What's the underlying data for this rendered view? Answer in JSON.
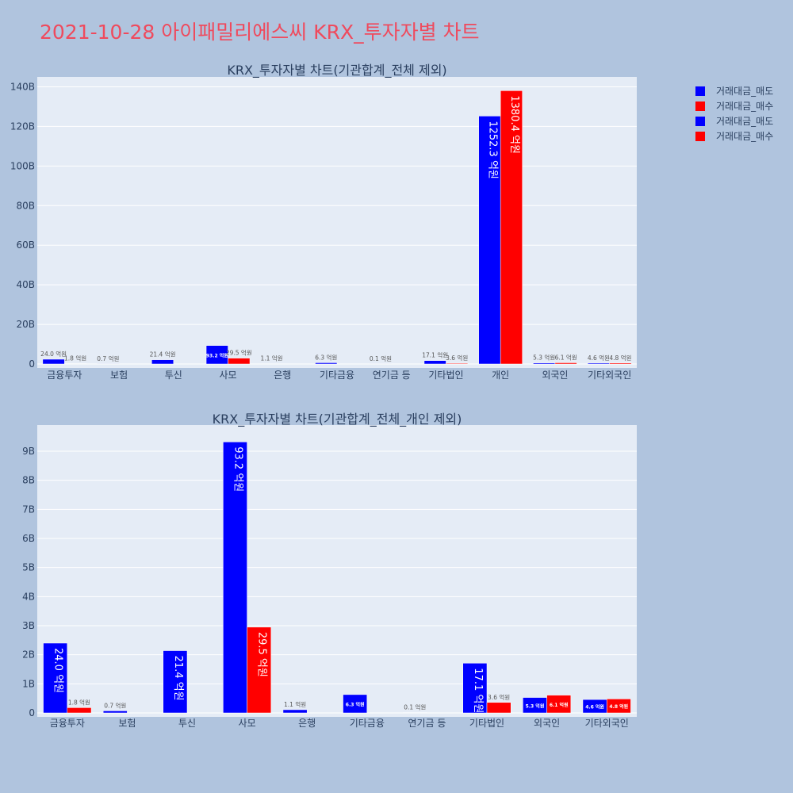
{
  "page_title": "2021-10-28 아이패밀리에스씨 KRX_투자자별 차트",
  "colors": {
    "background": "#b0c4de",
    "plot_bg": "#e5ecf6",
    "title": "#ef4a5d",
    "sell": "#0000ff",
    "buy": "#ff0000",
    "axis_text": "#2a3f5f"
  },
  "legend": {
    "items": [
      {
        "label": "거래대금_매도",
        "color": "#0000ff"
      },
      {
        "label": "거래대금_매수",
        "color": "#ff0000"
      },
      {
        "label": "거래대금_매도",
        "color": "#0000ff"
      },
      {
        "label": "거래대금_매수",
        "color": "#ff0000"
      }
    ]
  },
  "chart_data": [
    {
      "type": "bar",
      "title": "KRX_투자자별 차트(기관합계_전체 제외)",
      "categories": [
        "금융투자",
        "보험",
        "투신",
        "사모",
        "은행",
        "기타금융",
        "연기금 등",
        "기타법인",
        "개인",
        "외국인",
        "기타외국인"
      ],
      "series": [
        {
          "name": "거래대금_매도",
          "values": [
            2.4,
            0.07,
            2.14,
            9.32,
            0.11,
            0.63,
            0.01,
            1.71,
            125.23,
            0.53,
            0.46
          ],
          "labels": [
            "24.0 억원",
            "0.7 억원",
            "21.4 억원",
            "93.2 억원",
            "1.1 억원",
            "6.3 억원",
            "0.1 억원",
            "17.1 억원",
            "1252.3 억원",
            "5.3 억원",
            "4.6 억원"
          ]
        },
        {
          "name": "거래대금_매수",
          "values": [
            0.18,
            0,
            0,
            2.95,
            0,
            0,
            0,
            0.36,
            138.04,
            0.61,
            0.48
          ],
          "labels": [
            "1.8 억원",
            "",
            "",
            "29.5 억원",
            "",
            "",
            "",
            "3.6 억원",
            "1380.4 억원",
            "6.1 억원",
            "4.8 억원"
          ]
        }
      ],
      "ylim": [
        0,
        145
      ],
      "yticks": [
        0,
        20,
        40,
        60,
        80,
        100,
        120,
        140
      ],
      "ytick_labels": [
        "0",
        "20B",
        "40B",
        "60B",
        "80B",
        "100B",
        "120B",
        "140B"
      ]
    },
    {
      "type": "bar",
      "title": "KRX_투자자별 차트(기관합계_전체_개인 제외)",
      "categories": [
        "금융투자",
        "보험",
        "투신",
        "사모",
        "은행",
        "기타금융",
        "연기금 등",
        "기타법인",
        "외국인",
        "기타외국인"
      ],
      "series": [
        {
          "name": "거래대금_매도",
          "values": [
            2.4,
            0.07,
            2.14,
            9.32,
            0.11,
            0.63,
            0.01,
            1.71,
            0.53,
            0.46
          ],
          "labels": [
            "24.0 억원",
            "0.7 억원",
            "21.4 억원",
            "93.2 억원",
            "1.1 억원",
            "6.3 억원",
            "0.1 억원",
            "17.1 억원",
            "5.3 억원",
            "4.6 억원"
          ]
        },
        {
          "name": "거래대금_매수",
          "values": [
            0.18,
            0,
            0,
            2.95,
            0,
            0,
            0,
            0.36,
            0.61,
            0.48
          ],
          "labels": [
            "1.8 억원",
            "",
            "",
            "29.5 억원",
            "",
            "",
            "",
            "3.6 억원",
            "6.1 억원",
            "4.8 억원"
          ]
        }
      ],
      "ylim": [
        0,
        9.9
      ],
      "yticks": [
        0,
        1,
        2,
        3,
        4,
        5,
        6,
        7,
        8,
        9
      ],
      "ytick_labels": [
        "0",
        "1B",
        "2B",
        "3B",
        "4B",
        "5B",
        "6B",
        "7B",
        "8B",
        "9B"
      ]
    }
  ]
}
